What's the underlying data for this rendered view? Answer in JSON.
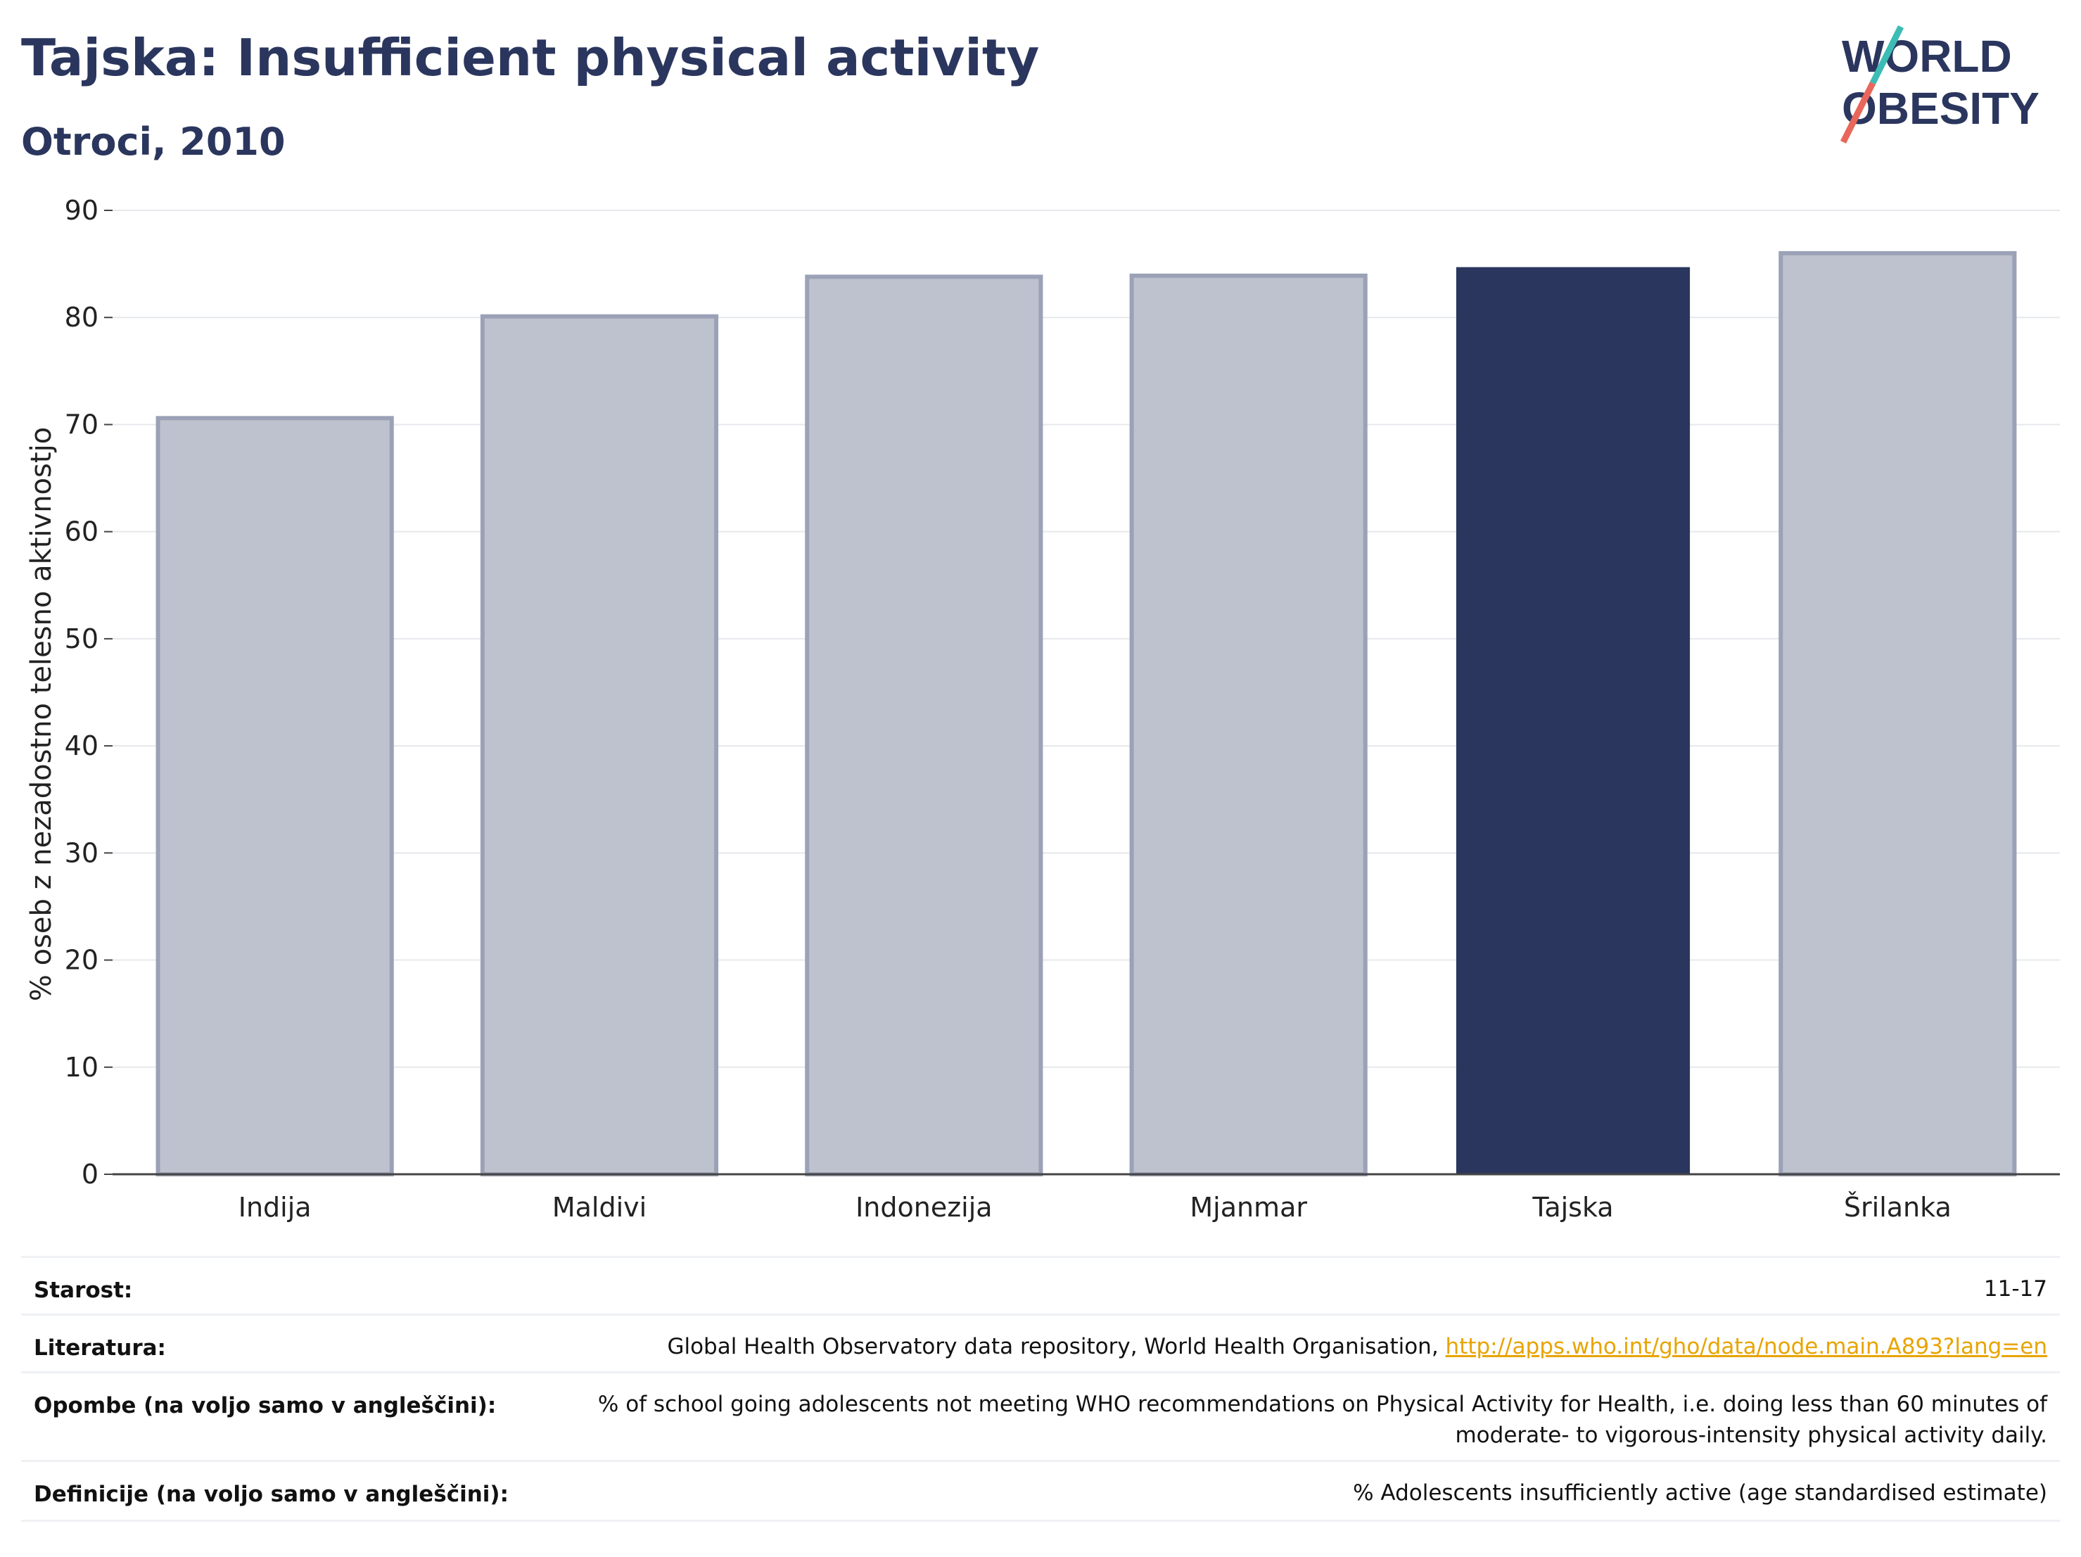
{
  "header": {
    "title": "Tajska: Insufficient physical activity",
    "subtitle": "Otroci, 2010"
  },
  "logo": {
    "line1": "WORLD",
    "line2": "OBESITY"
  },
  "chart_data": {
    "type": "bar",
    "categories": [
      "Indija",
      "Maldivi",
      "Indonezija",
      "Mjanmar",
      "Tajska",
      "Šrilanka"
    ],
    "values": [
      70.6,
      80.1,
      83.8,
      83.9,
      84.7,
      86.0
    ],
    "highlight": "Tajska",
    "ylabel": "% oseb z nezadostno telesno aktivnostjo",
    "ylim": [
      0,
      90
    ],
    "yticks": [
      0,
      10,
      20,
      30,
      40,
      50,
      60,
      70,
      80,
      90
    ],
    "grid": true,
    "colors": {
      "highlight": "#2b365e",
      "other": "#bec2ce",
      "other_stroke": "#9ba1b6"
    }
  },
  "info": {
    "age_label": "Starost:",
    "age_value": "11-17",
    "lit_label": "Literatura:",
    "lit_value": "Global Health Observatory data repository, World Health Organisation, ",
    "lit_link": "http://apps.who.int/gho/data/node.main.A893?lang=en",
    "notes_label": "Opombe (na voljo samo v angleščini):",
    "notes_value": "% of school going adolescents not meeting WHO recommendations on Physical Activity for Health, i.e. doing less than 60 minutes of moderate- to vigorous-intensity physical activity daily.",
    "def_label": "Definicije (na voljo samo v angleščini):",
    "def_value": "% Adolescents insufficiently active (age standardised estimate)"
  }
}
